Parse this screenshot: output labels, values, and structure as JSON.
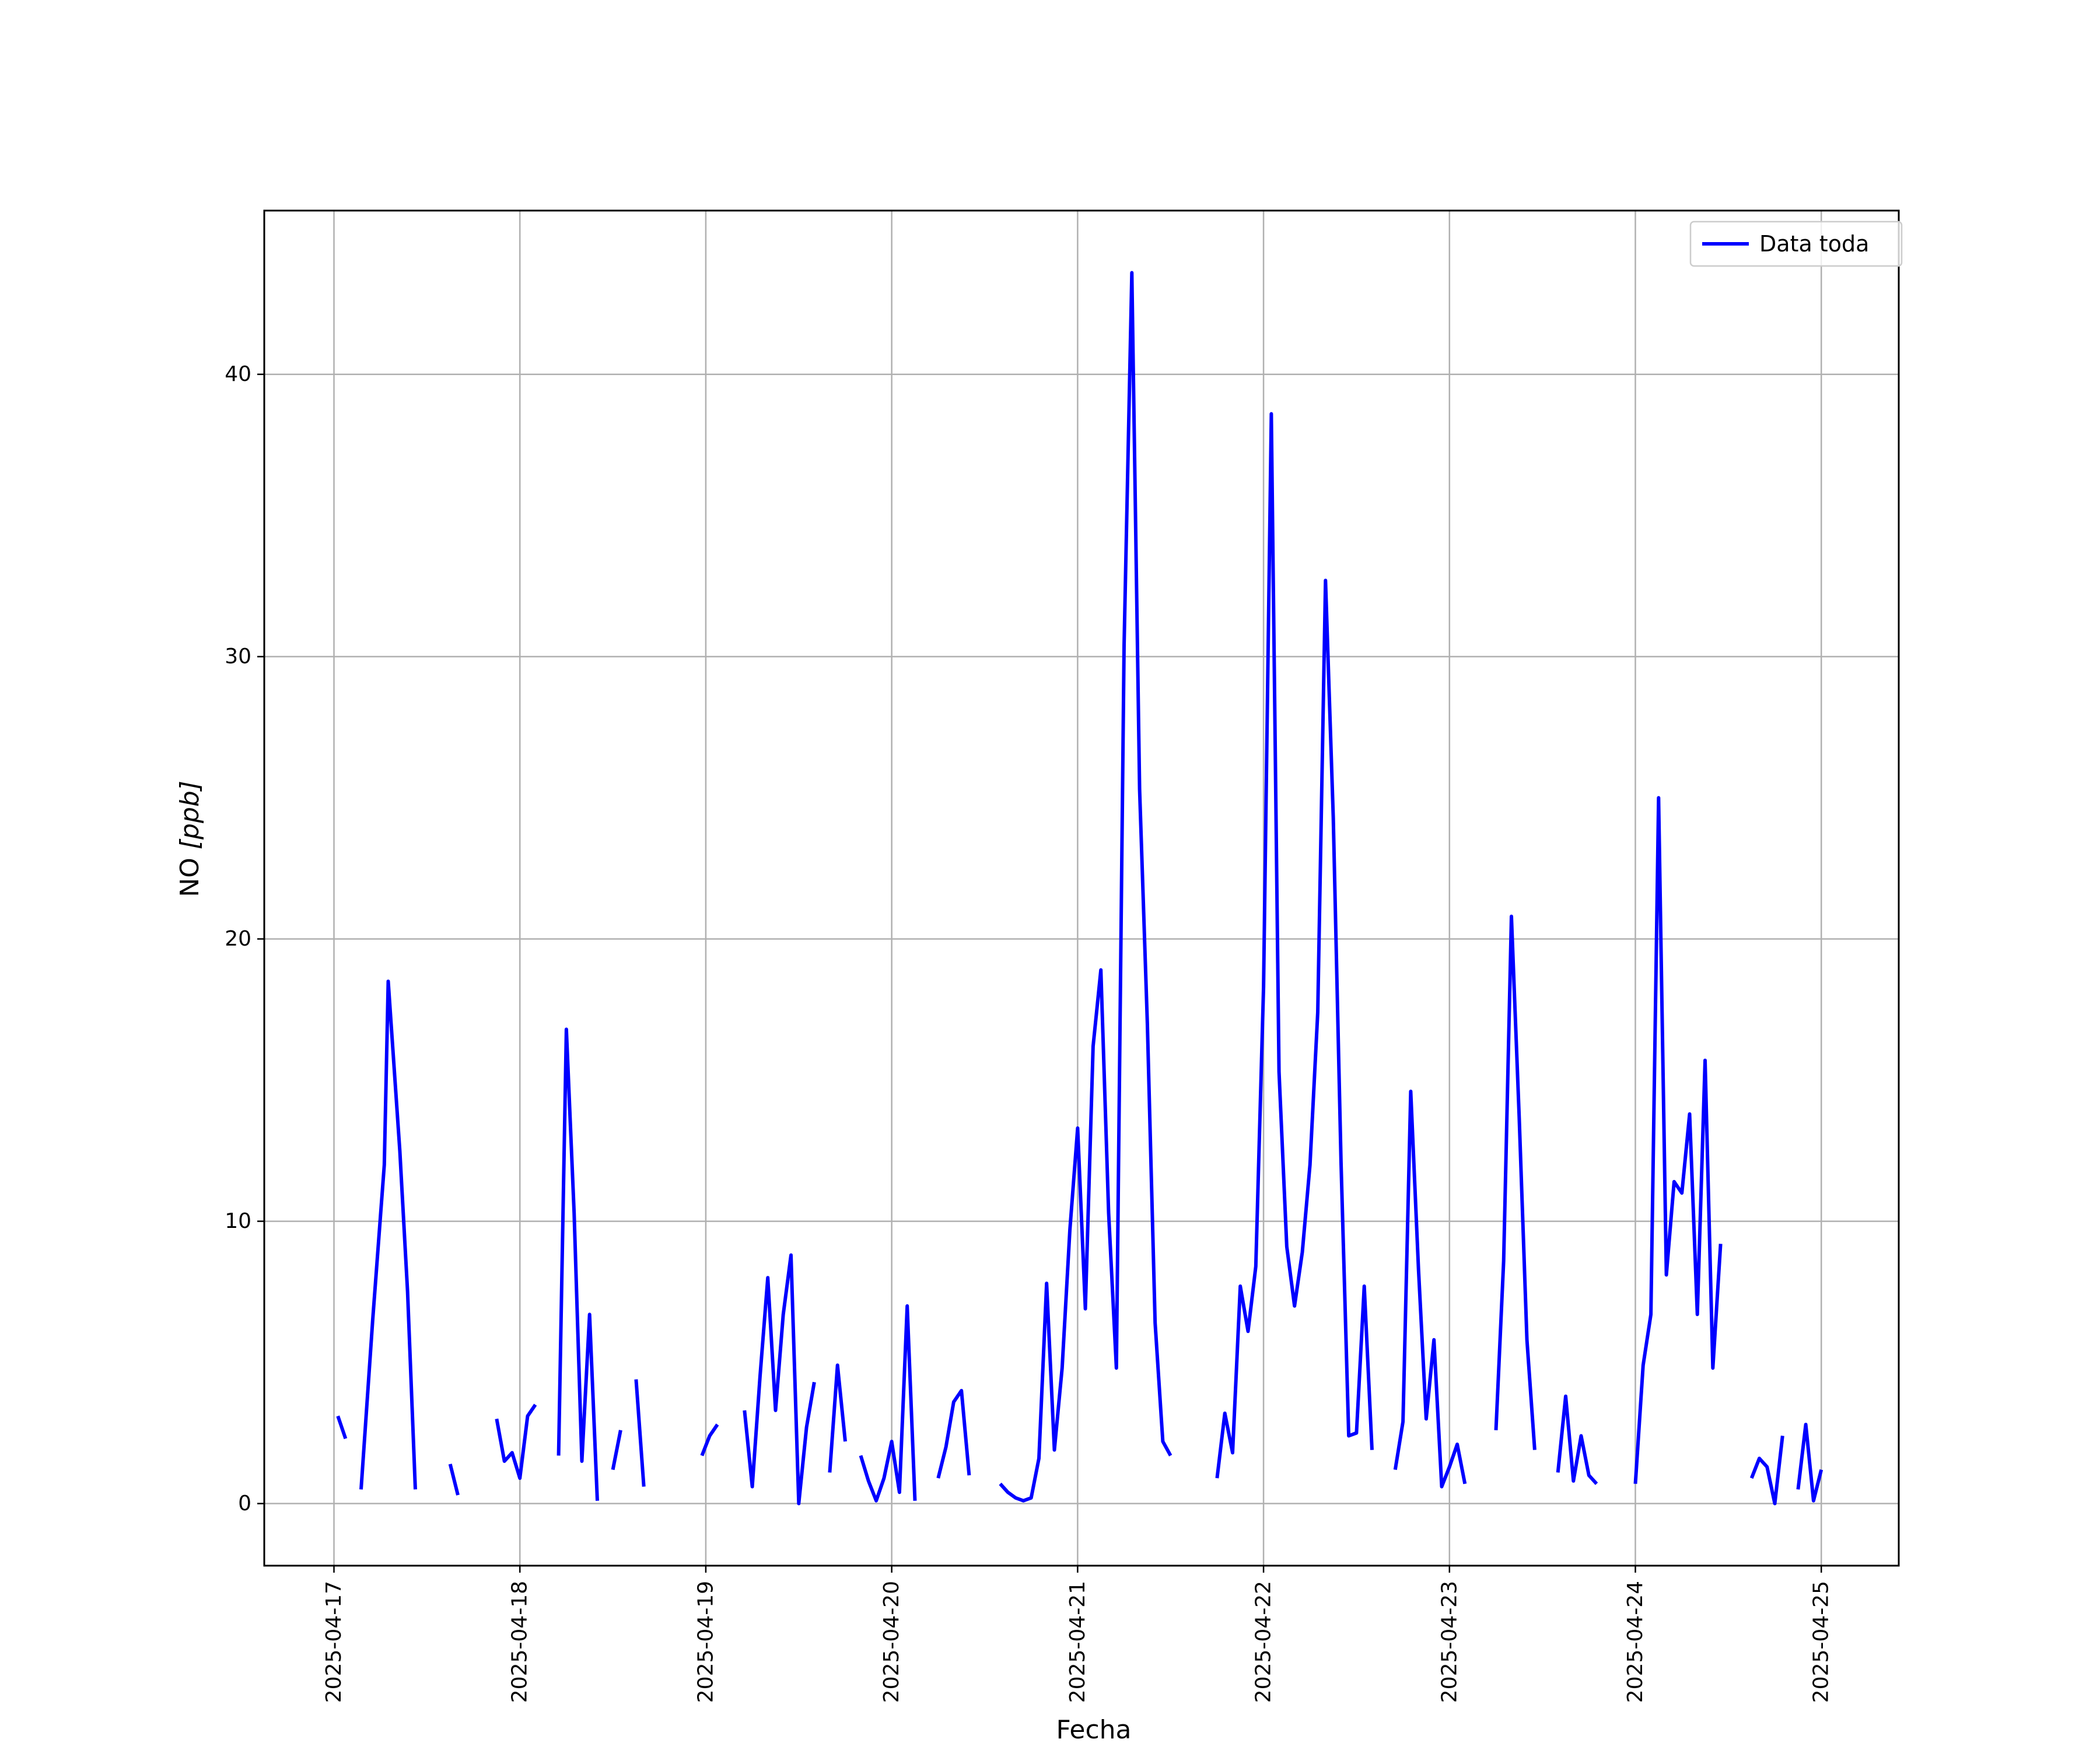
{
  "chart_data": {
    "type": "line",
    "xlabel": "Fecha",
    "ylabel_text": "NO ",
    "ylabel_unit": "[ppb]",
    "xlim": [
      "2025-04-16T15:00",
      "2025-04-25T10:00"
    ],
    "ylim": [
      -2.2,
      45.8
    ],
    "x_ticks": [
      "2025-04-17",
      "2025-04-18",
      "2025-04-19",
      "2025-04-20",
      "2025-04-21",
      "2025-04-22",
      "2025-04-23",
      "2025-04-24",
      "2025-04-25"
    ],
    "y_ticks": [
      0,
      10,
      20,
      30,
      40
    ],
    "grid": true,
    "legend_position": "upper right",
    "series": [
      {
        "name": "Data toda",
        "color": "#0000ff",
        "segments": [
          [
            [
              "2025-04-17T00:30",
              3.1
            ],
            [
              "2025-04-17T01:30",
              2.3
            ]
          ],
          [
            [
              "2025-04-17T03:30",
              0.5
            ],
            [
              "2025-04-17T05:00",
              6.5
            ],
            [
              "2025-04-17T06:30",
              12.0
            ],
            [
              "2025-04-17T07:00",
              18.5
            ],
            [
              "2025-04-17T08:30",
              12.5
            ],
            [
              "2025-04-17T09:30",
              7.5
            ],
            [
              "2025-04-17T10:30",
              0.5
            ]
          ],
          [
            [
              "2025-04-17T15:00",
              1.4
            ],
            [
              "2025-04-17T16:00",
              0.3
            ]
          ],
          [
            [
              "2025-04-17T21:00",
              3.0
            ],
            [
              "2025-04-17T22:00",
              1.5
            ],
            [
              "2025-04-17T23:00",
              1.8
            ],
            [
              "2025-04-18T00:00",
              0.9
            ],
            [
              "2025-04-18T01:00",
              3.1
            ],
            [
              "2025-04-18T02:00",
              3.5
            ]
          ],
          [
            [
              "2025-04-18T05:00",
              1.7
            ],
            [
              "2025-04-18T06:00",
              16.8
            ],
            [
              "2025-04-18T07:00",
              10.3
            ],
            [
              "2025-04-18T08:00",
              1.5
            ],
            [
              "2025-04-18T09:00",
              6.7
            ],
            [
              "2025-04-18T10:00",
              0.1
            ]
          ],
          [
            [
              "2025-04-18T12:00",
              1.2
            ],
            [
              "2025-04-18T13:00",
              2.6
            ]
          ],
          [
            [
              "2025-04-18T15:00",
              4.4
            ],
            [
              "2025-04-18T16:00",
              0.6
            ]
          ],
          [
            [
              "2025-04-18T23:30",
              1.7
            ],
            [
              "2025-04-19T00:30",
              2.4
            ],
            [
              "2025-04-19T01:30",
              2.8
            ]
          ],
          [
            [
              "2025-04-19T05:00",
              3.3
            ],
            [
              "2025-04-19T06:00",
              0.6
            ],
            [
              "2025-04-19T07:00",
              4.5
            ],
            [
              "2025-04-19T08:00",
              8.0
            ],
            [
              "2025-04-19T09:00",
              3.3
            ],
            [
              "2025-04-19T10:00",
              6.7
            ],
            [
              "2025-04-19T11:00",
              8.8
            ],
            [
              "2025-04-19T12:00",
              0.0
            ],
            [
              "2025-04-19T13:00",
              2.7
            ],
            [
              "2025-04-19T14:00",
              4.3
            ]
          ],
          [
            [
              "2025-04-19T16:00",
              1.1
            ],
            [
              "2025-04-19T17:00",
              4.9
            ],
            [
              "2025-04-19T18:00",
              2.2
            ]
          ],
          [
            [
              "2025-04-19T20:00",
              1.7
            ],
            [
              "2025-04-19T21:00",
              0.8
            ],
            [
              "2025-04-19T22:00",
              0.1
            ],
            [
              "2025-04-19T23:00",
              0.9
            ],
            [
              "2025-04-20T00:00",
              2.2
            ],
            [
              "2025-04-20T01:00",
              0.4
            ],
            [
              "2025-04-20T02:00",
              7.0
            ],
            [
              "2025-04-20T03:00",
              0.1
            ]
          ],
          [
            [
              "2025-04-20T06:00",
              0.9
            ],
            [
              "2025-04-20T07:00",
              2.0
            ],
            [
              "2025-04-20T08:00",
              3.6
            ],
            [
              "2025-04-20T09:00",
              4.0
            ],
            [
              "2025-04-20T10:00",
              1.0
            ]
          ],
          [
            [
              "2025-04-20T14:00",
              0.7
            ],
            [
              "2025-04-20T15:00",
              0.4
            ],
            [
              "2025-04-20T16:00",
              0.2
            ],
            [
              "2025-04-20T17:00",
              0.1
            ],
            [
              "2025-04-20T18:00",
              0.2
            ],
            [
              "2025-04-20T19:00",
              1.6
            ],
            [
              "2025-04-20T20:00",
              7.8
            ],
            [
              "2025-04-20T21:00",
              1.9
            ],
            [
              "2025-04-20T22:00",
              4.8
            ],
            [
              "2025-04-20T23:00",
              9.7
            ],
            [
              "2025-04-21T00:00",
              13.3
            ],
            [
              "2025-04-21T01:00",
              6.9
            ],
            [
              "2025-04-21T02:00",
              16.2
            ],
            [
              "2025-04-21T03:00",
              18.9
            ],
            [
              "2025-04-21T04:00",
              10.3
            ],
            [
              "2025-04-21T05:00",
              4.8
            ],
            [
              "2025-04-21T06:00",
              30.4
            ],
            [
              "2025-04-21T07:00",
              43.6
            ],
            [
              "2025-04-21T08:00",
              25.3
            ],
            [
              "2025-04-21T09:00",
              17.0
            ],
            [
              "2025-04-21T10:00",
              6.4
            ],
            [
              "2025-04-21T11:00",
              2.2
            ],
            [
              "2025-04-21T12:00",
              1.7
            ]
          ],
          [
            [
              "2025-04-21T18:00",
              0.9
            ],
            [
              "2025-04-21T19:00",
              3.2
            ],
            [
              "2025-04-21T20:00",
              1.8
            ],
            [
              "2025-04-21T21:00",
              7.7
            ],
            [
              "2025-04-21T22:00",
              6.1
            ],
            [
              "2025-04-21T23:00",
              8.4
            ],
            [
              "2025-04-22T00:00",
              18.3
            ],
            [
              "2025-04-22T01:00",
              38.6
            ],
            [
              "2025-04-22T02:00",
              15.3
            ],
            [
              "2025-04-22T03:00",
              9.1
            ],
            [
              "2025-04-22T04:00",
              7.0
            ],
            [
              "2025-04-22T05:00",
              8.9
            ],
            [
              "2025-04-22T06:00",
              12.0
            ],
            [
              "2025-04-22T07:00",
              17.4
            ],
            [
              "2025-04-22T08:00",
              32.7
            ],
            [
              "2025-04-22T09:00",
              24.3
            ],
            [
              "2025-04-22T10:00",
              12.1
            ],
            [
              "2025-04-22T11:00",
              2.4
            ],
            [
              "2025-04-22T12:00",
              2.5
            ],
            [
              "2025-04-22T13:00",
              7.7
            ],
            [
              "2025-04-22T14:00",
              1.9
            ]
          ],
          [
            [
              "2025-04-22T17:00",
              1.2
            ],
            [
              "2025-04-22T18:00",
              2.9
            ],
            [
              "2025-04-22T19:00",
              14.6
            ],
            [
              "2025-04-22T20:00",
              8.3
            ],
            [
              "2025-04-22T21:00",
              3.0
            ],
            [
              "2025-04-22T22:00",
              5.8
            ],
            [
              "2025-04-22T23:00",
              0.6
            ],
            [
              "2025-04-23T00:00",
              1.3
            ],
            [
              "2025-04-23T01:00",
              2.1
            ],
            [
              "2025-04-23T02:00",
              0.7
            ]
          ],
          [
            [
              "2025-04-23T06:00",
              2.6
            ],
            [
              "2025-04-23T07:00",
              8.6
            ],
            [
              "2025-04-23T08:00",
              20.8
            ],
            [
              "2025-04-23T09:00",
              13.7
            ],
            [
              "2025-04-23T10:00",
              5.8
            ],
            [
              "2025-04-23T11:00",
              1.9
            ]
          ],
          [
            [
              "2025-04-23T14:00",
              1.1
            ],
            [
              "2025-04-23T15:00",
              3.8
            ],
            [
              "2025-04-23T16:00",
              0.8
            ],
            [
              "2025-04-23T17:00",
              2.4
            ],
            [
              "2025-04-23T18:00",
              1.0
            ],
            [
              "2025-04-23T19:00",
              0.7
            ]
          ],
          [
            [
              "2025-04-24T00:00",
              0.7
            ],
            [
              "2025-04-24T01:00",
              4.9
            ],
            [
              "2025-04-24T02:00",
              6.7
            ],
            [
              "2025-04-24T03:00",
              25.0
            ],
            [
              "2025-04-24T04:00",
              8.1
            ],
            [
              "2025-04-24T05:00",
              11.4
            ],
            [
              "2025-04-24T06:00",
              11.0
            ],
            [
              "2025-04-24T07:00",
              13.8
            ],
            [
              "2025-04-24T08:00",
              6.7
            ],
            [
              "2025-04-24T09:00",
              15.7
            ],
            [
              "2025-04-24T10:00",
              4.8
            ],
            [
              "2025-04-24T11:00",
              9.2
            ]
          ],
          [
            [
              "2025-04-24T15:00",
              0.9
            ],
            [
              "2025-04-24T16:00",
              1.6
            ],
            [
              "2025-04-24T17:00",
              1.3
            ],
            [
              "2025-04-24T18:00",
              0.0
            ],
            [
              "2025-04-24T19:00",
              2.4
            ]
          ],
          [
            [
              "2025-04-24T21:00",
              0.5
            ],
            [
              "2025-04-24T22:00",
              2.8
            ],
            [
              "2025-04-24T23:00",
              0.1
            ],
            [
              "2025-04-25T00:00",
              1.2
            ]
          ]
        ]
      }
    ]
  }
}
